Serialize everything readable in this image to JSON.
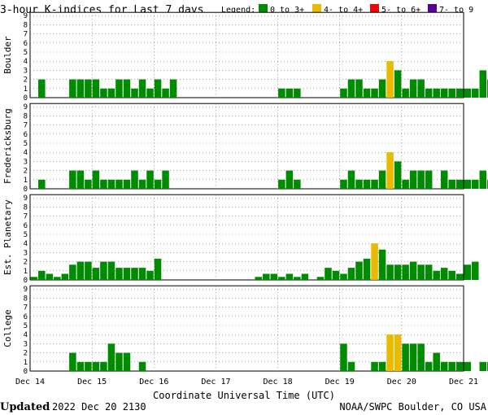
{
  "title": "3-hour K-indices for Last 7 days",
  "legend": {
    "label": "Legend:",
    "items": [
      {
        "text": "0 to 3+",
        "color": "#008c00"
      },
      {
        "text": "4- to 4+",
        "color": "#ebb900"
      },
      {
        "text": "5- to 6+",
        "color": "#ff0000"
      },
      {
        "text": "7- to 9",
        "color": "#5a0096"
      }
    ]
  },
  "xlabel": "Coordinate Universal Time (UTC)",
  "updated_label": "Updated",
  "updated_value": "2022 Dec 20 2130",
  "credit": "NOAA/SWPC Boulder, CO USA",
  "colors": {
    "quiet": "#008c00",
    "active": "#ebb900",
    "storm": "#ff0000",
    "severe": "#5a0096",
    "grid": "#6a6a6a"
  },
  "chart_data": {
    "type": "bar",
    "x_ticks": [
      "Dec 14",
      "Dec 15",
      "Dec 16",
      "Dec 17",
      "Dec 18",
      "Dec 19",
      "Dec 20",
      "Dec 21"
    ],
    "ylim": [
      0,
      9
    ],
    "y_ticks": [
      0,
      1,
      2,
      3,
      4,
      5,
      6,
      7,
      8,
      9
    ],
    "bins_per_day": 8,
    "panels": [
      {
        "name": "Boulder",
        "values": [
          0,
          2,
          0,
          0,
          0,
          2,
          2,
          2,
          2,
          1,
          1,
          2,
          2,
          1,
          2,
          1,
          2,
          1,
          2,
          0,
          0,
          0,
          0,
          0,
          0,
          0,
          0,
          0,
          0,
          0,
          0,
          0,
          1,
          1,
          1,
          0,
          0,
          0,
          0,
          0,
          1,
          2,
          2,
          1,
          1,
          2,
          4,
          3,
          1,
          2,
          2,
          1,
          1,
          1,
          1,
          1,
          1,
          1,
          3,
          2,
          0
        ]
      },
      {
        "name": "Fredericksburg",
        "values": [
          0,
          1,
          0,
          0,
          0,
          2,
          2,
          1,
          2,
          1,
          1,
          1,
          1,
          2,
          1,
          2,
          1,
          2,
          0,
          0,
          0,
          0,
          0,
          0,
          0,
          0,
          0,
          0,
          0,
          0,
          0,
          0,
          1,
          2,
          1,
          0,
          0,
          0,
          0,
          0,
          1,
          2,
          1,
          1,
          1,
          2,
          4,
          3,
          1,
          2,
          2,
          2,
          0,
          2,
          1,
          1,
          1,
          1,
          2,
          1,
          0
        ]
      },
      {
        "name": "Est. Planetary",
        "values": [
          0.33,
          1,
          0.67,
          0.33,
          0.67,
          1.67,
          2,
          2,
          1.33,
          2,
          2,
          1.33,
          1.33,
          1.33,
          1.33,
          1,
          2.33,
          0,
          0,
          0,
          0,
          0,
          0,
          0,
          0,
          0,
          0,
          0,
          0,
          0.33,
          0.67,
          0.67,
          0.33,
          0.67,
          0.33,
          0.67,
          0,
          0.33,
          1.33,
          1,
          0.67,
          1.33,
          2,
          2.33,
          4,
          3.33,
          1.67,
          1.67,
          1.67,
          2,
          1.67,
          1.67,
          1,
          1.33,
          1,
          0.67,
          1.67,
          2
        ]
      },
      {
        "name": "College",
        "values": [
          0,
          0,
          0,
          0,
          0,
          2,
          1,
          1,
          1,
          1,
          3,
          2,
          2,
          0,
          1,
          0,
          0,
          0,
          0,
          0,
          0,
          0,
          0,
          0,
          0,
          0,
          0,
          0,
          0,
          0,
          0,
          0,
          0,
          0,
          0,
          0,
          0,
          0,
          0,
          0,
          3,
          1,
          0,
          0,
          1,
          1,
          4,
          4,
          3,
          3,
          3,
          1,
          2,
          1,
          1,
          1,
          1,
          0,
          1,
          1,
          0
        ]
      }
    ]
  }
}
